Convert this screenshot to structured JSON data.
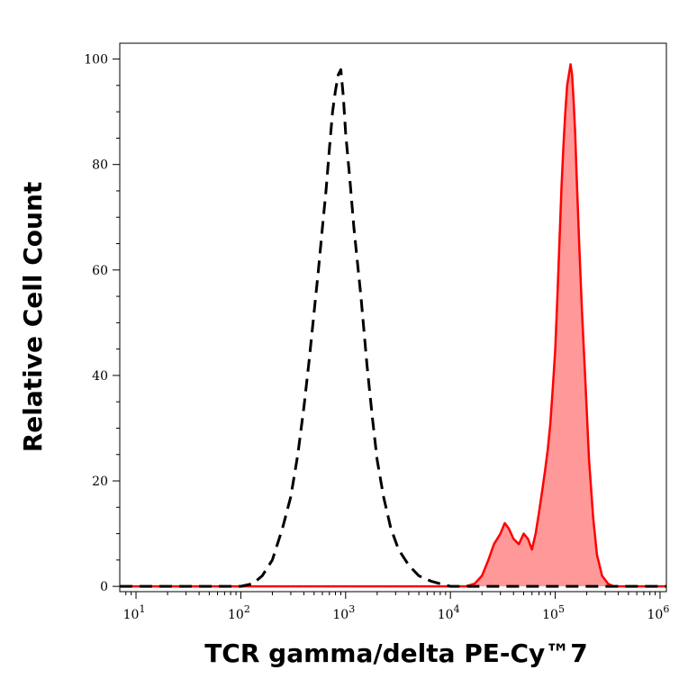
{
  "chart_data": {
    "type": "area",
    "xlabel": "TCR gamma/delta PE-Cy™7",
    "ylabel": "Relative Cell Count",
    "x_scale": "log",
    "xlim": [
      7,
      1150000
    ],
    "ylim": [
      -1,
      103
    ],
    "x_ticks": [
      {
        "value": 10,
        "base": "10",
        "exp": "1"
      },
      {
        "value": 100,
        "base": "10",
        "exp": "2"
      },
      {
        "value": 1000,
        "base": "10",
        "exp": "3"
      },
      {
        "value": 10000,
        "base": "10",
        "exp": "4"
      },
      {
        "value": 100000,
        "base": "10",
        "exp": "5"
      },
      {
        "value": 1000000,
        "base": "10",
        "exp": "6"
      }
    ],
    "y_ticks": [
      0,
      20,
      40,
      60,
      80,
      100
    ],
    "colors": {
      "stained": "#ff0000",
      "stained_fill": "#ff9999",
      "control": "#000000"
    },
    "series": [
      {
        "style": "dashed-black",
        "points": [
          [
            7,
            0
          ],
          [
            100,
            0
          ],
          [
            130,
            0.5
          ],
          [
            160,
            2
          ],
          [
            200,
            5
          ],
          [
            250,
            11
          ],
          [
            300,
            17
          ],
          [
            350,
            25
          ],
          [
            400,
            34
          ],
          [
            450,
            43
          ],
          [
            500,
            52
          ],
          [
            550,
            60
          ],
          [
            600,
            68
          ],
          [
            650,
            75
          ],
          [
            700,
            83
          ],
          [
            750,
            90
          ],
          [
            800,
            94
          ],
          [
            850,
            97
          ],
          [
            900,
            98
          ],
          [
            950,
            93
          ],
          [
            1000,
            86
          ],
          [
            1100,
            77
          ],
          [
            1200,
            68
          ],
          [
            1400,
            55
          ],
          [
            1600,
            42
          ],
          [
            1800,
            32
          ],
          [
            2000,
            24
          ],
          [
            2300,
            17
          ],
          [
            2700,
            11
          ],
          [
            3200,
            7
          ],
          [
            4000,
            4
          ],
          [
            5000,
            2
          ],
          [
            6500,
            1
          ],
          [
            8000,
            0.5
          ],
          [
            10000,
            0
          ],
          [
            1150000,
            0
          ]
        ]
      },
      {
        "style": "red-filled",
        "points": [
          [
            7,
            0
          ],
          [
            14000,
            0
          ],
          [
            17000,
            0.5
          ],
          [
            20000,
            2
          ],
          [
            23000,
            5
          ],
          [
            26000,
            8
          ],
          [
            30000,
            10
          ],
          [
            33000,
            12
          ],
          [
            36000,
            11
          ],
          [
            40000,
            9
          ],
          [
            45000,
            8
          ],
          [
            50000,
            10
          ],
          [
            55000,
            9
          ],
          [
            60000,
            7
          ],
          [
            65000,
            10
          ],
          [
            70000,
            14
          ],
          [
            75000,
            18
          ],
          [
            80000,
            22
          ],
          [
            85000,
            26
          ],
          [
            90000,
            31
          ],
          [
            95000,
            38
          ],
          [
            100000,
            45
          ],
          [
            105000,
            55
          ],
          [
            110000,
            66
          ],
          [
            115000,
            76
          ],
          [
            120000,
            84
          ],
          [
            125000,
            90
          ],
          [
            130000,
            95
          ],
          [
            135000,
            97
          ],
          [
            140000,
            99
          ],
          [
            145000,
            97
          ],
          [
            150000,
            92
          ],
          [
            155000,
            86
          ],
          [
            160000,
            78
          ],
          [
            170000,
            64
          ],
          [
            180000,
            52
          ],
          [
            195000,
            38
          ],
          [
            210000,
            24
          ],
          [
            230000,
            13
          ],
          [
            250000,
            6
          ],
          [
            280000,
            2
          ],
          [
            320000,
            0.5
          ],
          [
            360000,
            0
          ],
          [
            1150000,
            0
          ]
        ]
      }
    ]
  }
}
